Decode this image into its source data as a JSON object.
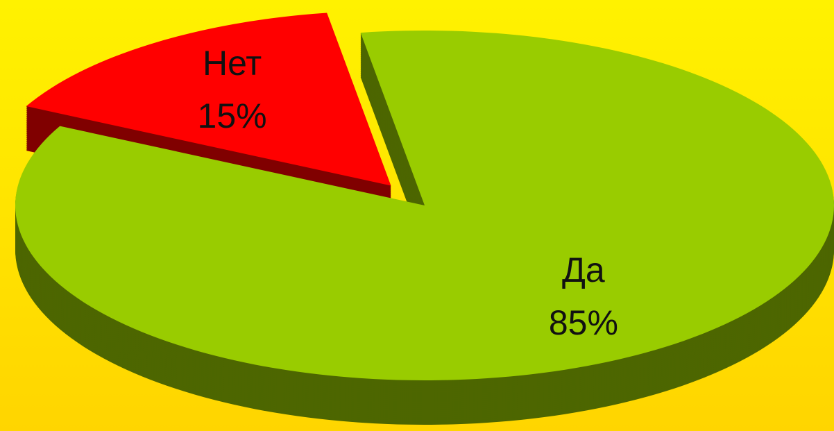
{
  "chart_data": {
    "type": "pie3d",
    "categories": [
      "Нет",
      "Да"
    ],
    "values": [
      15,
      85
    ],
    "value_labels": [
      "15%",
      "85%"
    ],
    "colors": [
      "#ff0000",
      "#99cc00"
    ],
    "exploded": [
      true,
      false
    ]
  }
}
